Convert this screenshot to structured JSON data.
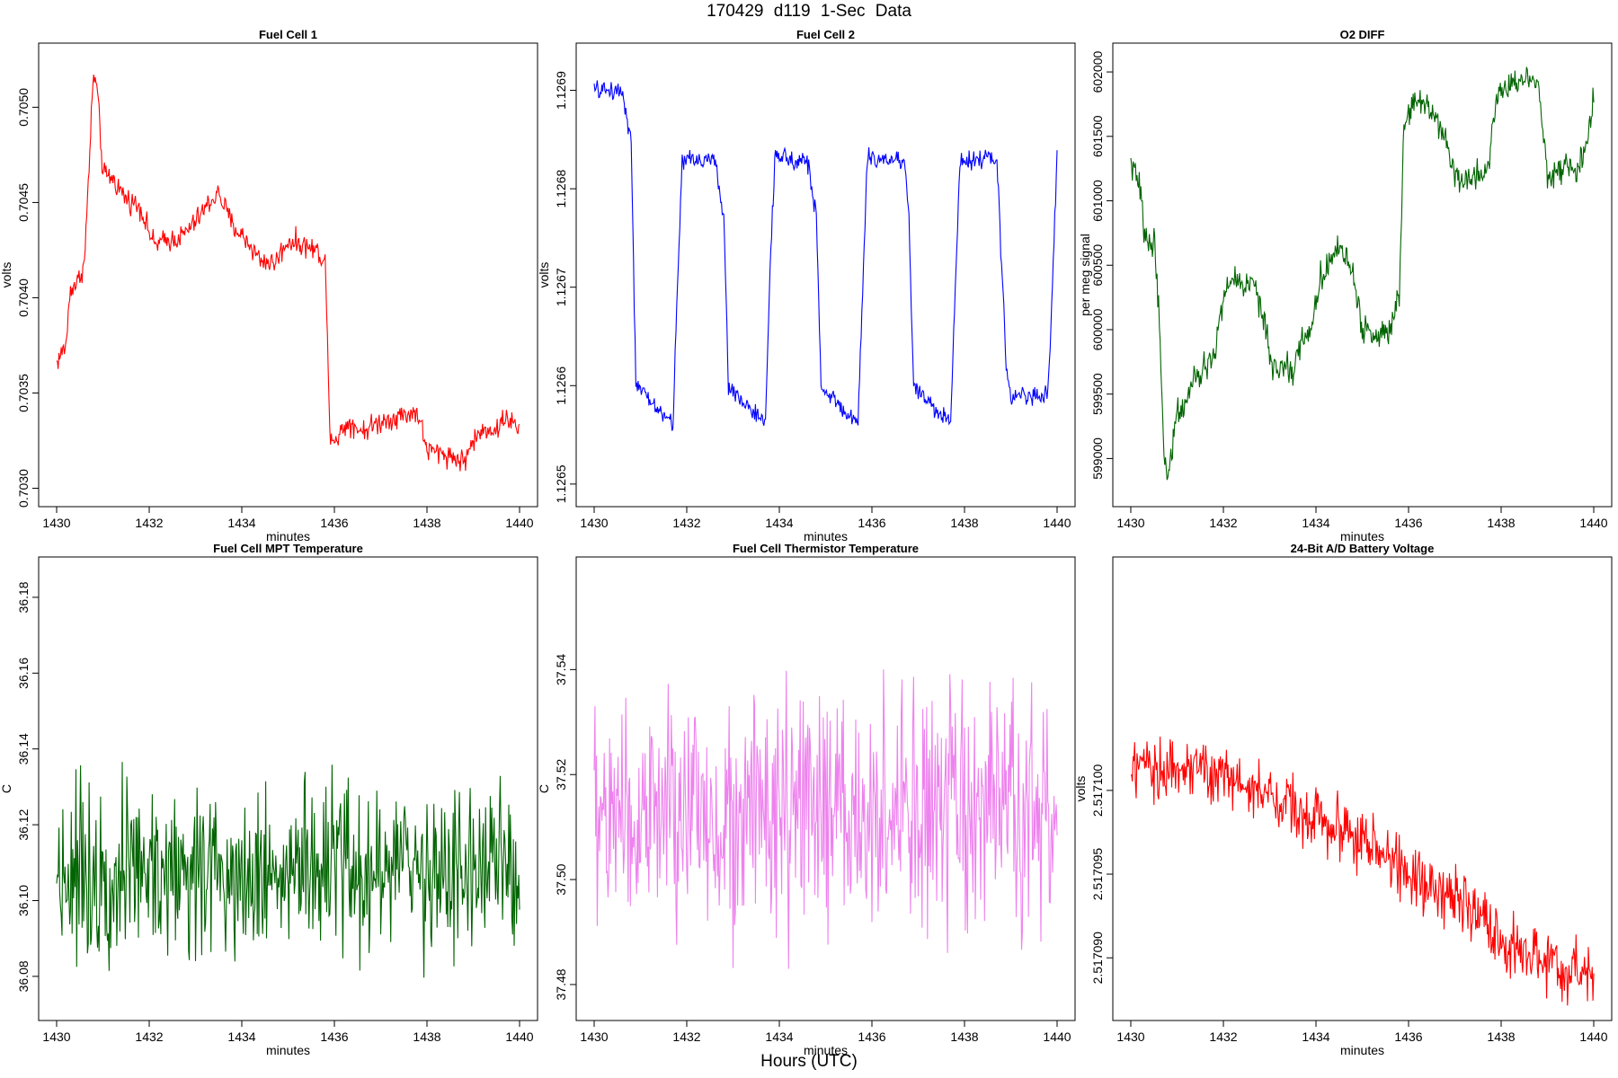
{
  "page": {
    "title": "170429   d119   1-Sec Data",
    "xlabel_global": "Hours (UTC)"
  },
  "chart_data": [
    {
      "type": "line",
      "title": "Fuel Cell 1",
      "xlabel": "minutes",
      "ylabel": "volts",
      "color": "#ff0000",
      "xlim": [
        1430,
        1440
      ],
      "ylim": [
        0.70296,
        0.70528
      ],
      "xticks": [
        1430,
        1432,
        1434,
        1436,
        1438,
        1440
      ],
      "yticks": [
        "0.7030",
        "0.7035",
        "0.7040",
        "0.7045",
        "0.7050"
      ],
      "series": [
        {
          "name": "Fuel Cell 1",
          "x": [
            1430.0,
            1430.2,
            1430.3,
            1430.45,
            1430.6,
            1430.68,
            1430.75,
            1430.8,
            1430.88,
            1431.0,
            1431.2,
            1431.5,
            1431.8,
            1432.1,
            1432.4,
            1432.7,
            1433.0,
            1433.3,
            1433.5,
            1433.8,
            1434.1,
            1434.4,
            1434.7,
            1435.0,
            1435.3,
            1435.6,
            1435.8,
            1435.9,
            1436.0,
            1436.3,
            1436.6,
            1437.0,
            1437.4,
            1437.8,
            1438.0,
            1438.4,
            1438.8,
            1439.0,
            1439.3,
            1439.5,
            1439.7,
            1440.0
          ],
          "y": [
            0.70366,
            0.70375,
            0.70405,
            0.70408,
            0.70418,
            0.70458,
            0.70495,
            0.70518,
            0.70508,
            0.70465,
            0.70463,
            0.70452,
            0.70448,
            0.70428,
            0.7043,
            0.70432,
            0.7044,
            0.7045,
            0.70455,
            0.70438,
            0.7043,
            0.7042,
            0.70418,
            0.7043,
            0.70428,
            0.70425,
            0.7042,
            0.70332,
            0.70325,
            0.70335,
            0.7033,
            0.70335,
            0.70338,
            0.7034,
            0.7032,
            0.70318,
            0.70314,
            0.70325,
            0.70332,
            0.7033,
            0.70338,
            0.7033
          ]
        }
      ],
      "noise": 3.5e-05
    },
    {
      "type": "line",
      "title": "Fuel Cell 2",
      "xlabel": "minutes",
      "ylabel": "volts",
      "color": "#0000ff",
      "xlim": [
        1430,
        1440
      ],
      "ylim": [
        1.126488,
        1.126937
      ],
      "xticks": [
        1430,
        1432,
        1434,
        1436,
        1438,
        1440
      ],
      "yticks": [
        "1.1265",
        "1.1266",
        "1.1267",
        "1.1268",
        "1.1269"
      ],
      "series": [
        {
          "name": "Fuel Cell 2",
          "x": [
            1430.0,
            1430.6,
            1430.8,
            1430.9,
            1431.7,
            1431.8,
            1431.9,
            1432.6,
            1432.8,
            1432.9,
            1433.7,
            1433.8,
            1433.9,
            1434.6,
            1434.8,
            1434.9,
            1435.7,
            1435.8,
            1435.9,
            1436.7,
            1436.8,
            1436.9,
            1437.7,
            1437.8,
            1437.9,
            1438.7,
            1438.9,
            1439.0,
            1439.8,
            1439.9,
            1440.0
          ],
          "y": [
            1.1269,
            1.1269,
            1.12685,
            1.1266,
            1.12656,
            1.1267,
            1.12683,
            1.12683,
            1.12677,
            1.1266,
            1.12656,
            1.12672,
            1.12683,
            1.12683,
            1.12677,
            1.1266,
            1.12656,
            1.1267,
            1.12683,
            1.12683,
            1.12677,
            1.1266,
            1.12656,
            1.1267,
            1.12683,
            1.12683,
            1.12662,
            1.12659,
            1.12659,
            1.1267,
            1.12684
          ]
        }
      ],
      "noise": 5.5e-06
    },
    {
      "type": "line",
      "title": "O2 DIFF",
      "xlabel": "minutes",
      "ylabel": "per meg signal",
      "color": "#006400",
      "xlim": [
        1430,
        1440
      ],
      "ylim": [
        598710,
        602140
      ],
      "xticks": [
        1430,
        1432,
        1434,
        1436,
        1438,
        1440
      ],
      "yticks": [
        "599000",
        "599500",
        "600000",
        "600500",
        "601000",
        "601500",
        "602000"
      ],
      "series": [
        {
          "name": "O2 DIFF",
          "x": [
            1430.0,
            1430.2,
            1430.3,
            1430.5,
            1430.6,
            1430.7,
            1430.8,
            1431.0,
            1431.1,
            1431.3,
            1431.6,
            1431.8,
            1432.0,
            1432.2,
            1432.5,
            1432.7,
            1432.9,
            1433.1,
            1433.3,
            1433.5,
            1433.7,
            1433.9,
            1434.1,
            1434.3,
            1434.5,
            1434.8,
            1435.0,
            1435.3,
            1435.6,
            1435.8,
            1435.9,
            1436.1,
            1436.4,
            1436.7,
            1437.0,
            1437.2,
            1437.5,
            1437.7,
            1437.9,
            1438.2,
            1438.5,
            1438.8,
            1439.0,
            1439.3,
            1439.6,
            1439.8,
            1439.9,
            1440.0
          ],
          "y": [
            601300,
            601100,
            600700,
            600700,
            600200,
            599200,
            598800,
            599400,
            599350,
            599550,
            599700,
            599800,
            600250,
            600400,
            600350,
            600350,
            600000,
            599650,
            599750,
            599650,
            599950,
            600000,
            600400,
            600550,
            600650,
            600450,
            600000,
            599950,
            600000,
            600300,
            601600,
            601800,
            601750,
            601600,
            601200,
            601150,
            601200,
            601250,
            601800,
            601900,
            601950,
            601950,
            601200,
            601250,
            601250,
            601350,
            601500,
            601850
          ]
        }
      ],
      "noise": 65
    },
    {
      "type": "line",
      "title": "Fuel Cell MPT Temperature",
      "xlabel": "minutes",
      "ylabel": "C",
      "color": "#006400",
      "xlim": [
        1430,
        1440
      ],
      "ylim": [
        36.0712,
        36.1878
      ],
      "xticks": [
        1430,
        1432,
        1434,
        1436,
        1438,
        1440
      ],
      "yticks": [
        "36.08",
        "36.10",
        "36.12",
        "36.14",
        "36.16",
        "36.18"
      ],
      "series": [
        {
          "name": "MPT Temperature",
          "x": [
            1430,
            1440
          ],
          "y": [
            36.108,
            36.108
          ]
        }
      ],
      "noise": 0.013
    },
    {
      "type": "line",
      "title": "Fuel Cell Thermistor Temperature",
      "xlabel": "minutes",
      "ylabel": "C",
      "color": "#ee82ee",
      "xlim": [
        1430,
        1440
      ],
      "ylim": [
        37.4752,
        37.5594
      ],
      "xticks": [
        1430,
        1432,
        1434,
        1436,
        1438,
        1440
      ],
      "yticks": [
        "37.48",
        "37.50",
        "37.52",
        "37.54"
      ],
      "series": [
        {
          "name": "Thermistor Temperature",
          "x": [
            1430,
            1440
          ],
          "y": [
            37.512,
            37.512
          ]
        }
      ],
      "noise": 0.013
    },
    {
      "type": "line",
      "title": "24-Bit A/D Battery Voltage",
      "xlabel": "minutes",
      "ylabel": "volts",
      "color": "#ff0000",
      "xlim": [
        1430,
        1440
      ],
      "ylim": [
        2.5170869,
        2.5171133
      ],
      "xticks": [
        1430,
        1432,
        1434,
        1436,
        1438,
        1440
      ],
      "yticks": [
        "2.517090",
        "2.517095",
        "2.517100"
      ],
      "series": [
        {
          "name": "Battery Voltage",
          "x": [
            1430.0,
            1431.0,
            1432.0,
            1433.0,
            1434.0,
            1435.0,
            1436.0,
            1437.0,
            1438.0,
            1439.0,
            1440.0
          ],
          "y": [
            2.517101,
            2.5171015,
            2.517101,
            2.5170995,
            2.5170985,
            2.517097,
            2.517095,
            2.5170935,
            2.517091,
            2.5170895,
            2.5170888
          ]
        }
      ],
      "noise": 1.1e-06
    }
  ]
}
